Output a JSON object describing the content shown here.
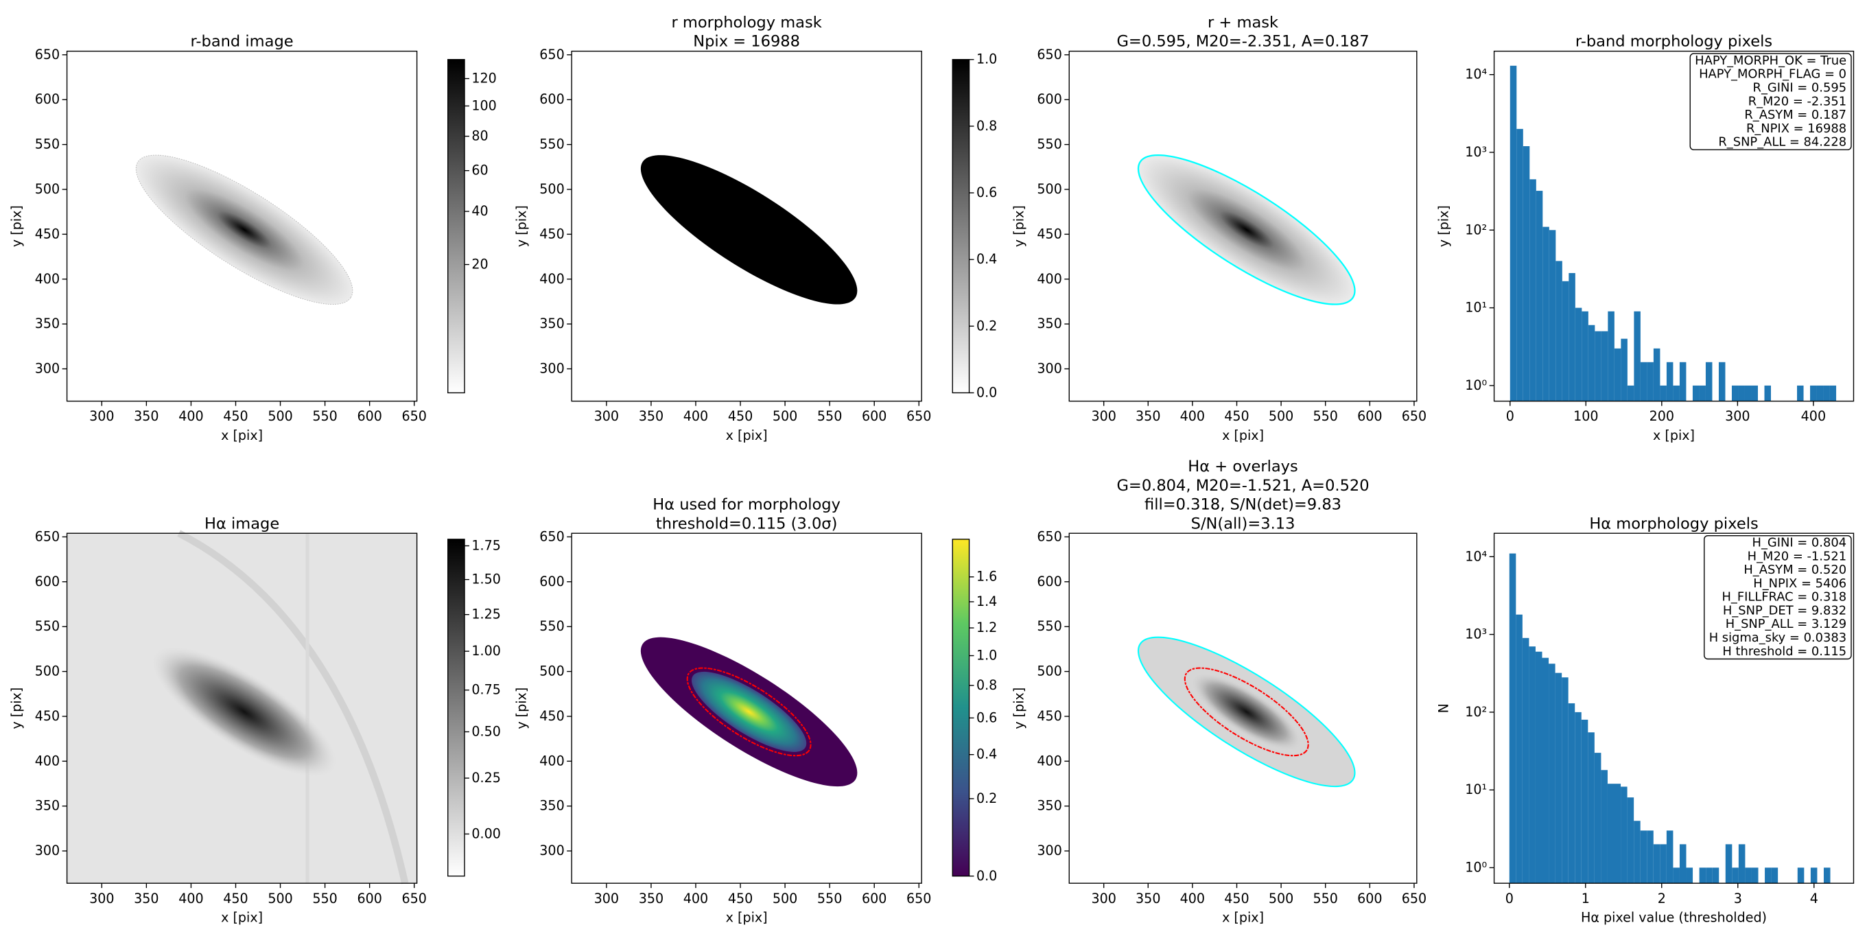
{
  "chart_data": [
    {
      "type": "image",
      "title": [
        "r-band image"
      ],
      "xlabel": "x [pix]",
      "ylabel": "y [pix]",
      "xlim": [
        261,
        653
      ],
      "ylim": [
        264,
        654
      ],
      "xticks": [
        300,
        350,
        400,
        450,
        500,
        550,
        600,
        650
      ],
      "yticks": [
        300,
        350,
        400,
        450,
        500,
        550,
        600,
        650
      ],
      "colorbar": {
        "cmap": "gray",
        "clim": [
          0,
          135
        ],
        "power": 0.5,
        "ticks": [
          20,
          40,
          60,
          80,
          100,
          120
        ]
      }
    },
    {
      "type": "image",
      "title": [
        "r morphology mask",
        "Npix = 16988"
      ],
      "xlabel": "x [pix]",
      "ylabel": "y [pix]",
      "xlim": [
        261,
        653
      ],
      "ylim": [
        264,
        654
      ],
      "xticks": [
        300,
        350,
        400,
        450,
        500,
        550,
        600,
        650
      ],
      "yticks": [
        300,
        350,
        400,
        450,
        500,
        550,
        600,
        650
      ],
      "colorbar": {
        "cmap": "gray",
        "clim": [
          0,
          1
        ],
        "power": 1,
        "ticks": [
          {
            "value": 0,
            "label": "0.0"
          },
          {
            "value": 0.2,
            "label": "0.2"
          },
          {
            "value": 0.4,
            "label": "0.4"
          },
          {
            "value": 0.6,
            "label": "0.6"
          },
          {
            "value": 0.8,
            "label": "0.8"
          },
          {
            "value": 1,
            "label": "1.0"
          }
        ]
      }
    },
    {
      "type": "image",
      "title": [
        "r + mask",
        "G=0.595, M20=-2.351, A=0.187"
      ],
      "xlabel": "x [pix]",
      "ylabel": "y [pix]",
      "xlim": [
        261,
        653
      ],
      "ylim": [
        264,
        654
      ],
      "xticks": [
        300,
        350,
        400,
        450,
        500,
        550,
        600,
        650
      ],
      "yticks": [
        300,
        350,
        400,
        450,
        500,
        550,
        600,
        650
      ]
    },
    {
      "type": "histogram",
      "title": [
        "r-band morphology pixels"
      ],
      "xlabel": "x [pix]",
      "ylabel": "y [pix]",
      "color": "#1f77b4",
      "yscale": "log",
      "xlim": [
        -21,
        453
      ],
      "ylim": [
        0.63,
        20000
      ],
      "xticks": [
        0,
        100,
        200,
        300,
        400
      ],
      "yticks": [
        {
          "value": 1,
          "label": "10⁰"
        },
        {
          "value": 10,
          "label": "10¹"
        },
        {
          "value": 100,
          "label": "10²"
        },
        {
          "value": 1000,
          "label": "10³"
        },
        {
          "value": 10000,
          "label": "10⁴"
        }
      ],
      "bins": [
        0,
        8.6,
        17.2,
        25.8,
        34.4,
        43,
        51.6,
        60.2,
        68.8,
        77.4,
        86,
        94.6,
        103.2,
        111.8,
        120.4,
        129,
        137.6,
        146.2,
        154.8,
        163.4,
        172,
        180.6,
        189.2,
        197.8,
        206.4,
        215,
        223.6,
        232.2,
        240.8,
        249.4,
        258,
        266.6,
        275.2,
        283.8,
        292.4,
        301,
        309.6,
        318.2,
        326.8,
        335.4,
        344,
        352.6,
        361.2,
        369.8,
        378.4,
        387,
        395.6,
        404.2,
        412.8,
        421.4,
        430
      ],
      "counts": [
        13000,
        2000,
        1200,
        450,
        320,
        110,
        100,
        40,
        22,
        28,
        10,
        9,
        6,
        5,
        5,
        9,
        3,
        4,
        1,
        9,
        2,
        2,
        3,
        1,
        2,
        1,
        2,
        0,
        1,
        1,
        2,
        0,
        2,
        0,
        1,
        1,
        1,
        1,
        0,
        1,
        0,
        0,
        0,
        0,
        1,
        0,
        1,
        1,
        1,
        1
      ],
      "annotation": [
        "HAPY_MORPH_OK = True",
        "HAPY_MORPH_FLAG = 0",
        "R_GINI = 0.595",
        "R_M20 = -2.351",
        "R_ASYM = 0.187",
        "R_NPIX = 16988",
        "R_SNP_ALL = 84.228"
      ]
    },
    {
      "type": "image",
      "title": [
        "Hα image"
      ],
      "xlabel": "x [pix]",
      "ylabel": "y [pix]",
      "xlim": [
        261,
        653
      ],
      "ylim": [
        264,
        654
      ],
      "xticks": [
        300,
        350,
        400,
        450,
        500,
        550,
        600,
        650
      ],
      "yticks": [
        300,
        350,
        400,
        450,
        500,
        550,
        600,
        650
      ],
      "colorbar": {
        "cmap": "gray",
        "clim": [
          -0.12,
          1.8
        ],
        "power": 0.75,
        "ticks": [
          {
            "value": 0,
            "label": "0.00"
          },
          {
            "value": 0.25,
            "label": "0.25"
          },
          {
            "value": 0.5,
            "label": "0.50"
          },
          {
            "value": 0.75,
            "label": "0.75"
          },
          {
            "value": 1,
            "label": "1.00"
          },
          {
            "value": 1.25,
            "label": "1.25"
          },
          {
            "value": 1.5,
            "label": "1.50"
          },
          {
            "value": 1.75,
            "label": "1.75"
          }
        ]
      }
    },
    {
      "type": "image",
      "title": [
        "Hα used for morphology",
        "threshold=0.115 (3.0σ)"
      ],
      "xlabel": "x [pix]",
      "ylabel": "y [pix]",
      "xlim": [
        261,
        653
      ],
      "ylim": [
        264,
        654
      ],
      "xticks": [
        300,
        350,
        400,
        450,
        500,
        550,
        600,
        650
      ],
      "yticks": [
        300,
        350,
        400,
        450,
        500,
        550,
        600,
        650
      ],
      "colorbar": {
        "cmap": "viridis",
        "clim": [
          0,
          1.92
        ],
        "power": 0.65,
        "ticks": [
          {
            "value": 0,
            "label": "0.0"
          },
          {
            "value": 0.2,
            "label": "0.2"
          },
          {
            "value": 0.4,
            "label": "0.4"
          },
          {
            "value": 0.6,
            "label": "0.6"
          },
          {
            "value": 0.8,
            "label": "0.8"
          },
          {
            "value": 1,
            "label": "1.0"
          },
          {
            "value": 1.2,
            "label": "1.2"
          },
          {
            "value": 1.4,
            "label": "1.4"
          },
          {
            "value": 1.6,
            "label": "1.6"
          }
        ]
      }
    },
    {
      "type": "image",
      "title": [
        "Hα + overlays",
        "G=0.804, M20=-1.521, A=0.520",
        "fill=0.318, S/N(det)=9.83",
        "S/N(all)=3.13"
      ],
      "xlabel": "x [pix]",
      "ylabel": "y [pix]",
      "xlim": [
        261,
        653
      ],
      "ylim": [
        264,
        654
      ],
      "xticks": [
        300,
        350,
        400,
        450,
        500,
        550,
        600,
        650
      ],
      "yticks": [
        300,
        350,
        400,
        450,
        500,
        550,
        600,
        650
      ]
    },
    {
      "type": "histogram",
      "title": [
        "Hα morphology pixels"
      ],
      "xlabel": "Hα pixel value (thresholded)",
      "ylabel": "N",
      "color": "#1f77b4",
      "yscale": "log",
      "xlim": [
        -0.2,
        4.52
      ],
      "ylim": [
        0.63,
        20000
      ],
      "xticks": [
        0,
        1,
        2,
        3,
        4
      ],
      "yticks": [
        {
          "value": 1,
          "label": "10⁰"
        },
        {
          "value": 10,
          "label": "10¹"
        },
        {
          "value": 100,
          "label": "10²"
        },
        {
          "value": 1000,
          "label": "10³"
        },
        {
          "value": 10000,
          "label": "10⁴"
        }
      ],
      "bins": [
        0,
        0.086,
        0.172,
        0.258,
        0.344,
        0.43,
        0.516,
        0.602,
        0.688,
        0.774,
        0.86,
        0.946,
        1.032,
        1.118,
        1.204,
        1.29,
        1.376,
        1.462,
        1.548,
        1.634,
        1.72,
        1.806,
        1.892,
        1.978,
        2.064,
        2.15,
        2.236,
        2.322,
        2.408,
        2.494,
        2.58,
        2.666,
        2.752,
        2.838,
        2.924,
        3.01,
        3.096,
        3.182,
        3.268,
        3.354,
        3.44,
        3.526,
        3.612,
        3.698,
        3.784,
        3.87,
        3.956,
        4.042,
        4.128,
        4.214,
        4.3
      ],
      "counts": [
        11000,
        1800,
        900,
        700,
        600,
        500,
        420,
        320,
        280,
        130,
        100,
        80,
        55,
        30,
        18,
        12,
        12,
        11,
        8,
        4,
        3,
        3,
        2,
        2,
        3,
        1,
        2,
        1,
        0,
        1,
        1,
        1,
        0,
        2,
        1,
        2,
        1,
        1,
        0,
        1,
        1,
        0,
        0,
        0,
        1,
        0,
        1,
        0,
        1,
        0
      ],
      "annotation": [
        "H_GINI = 0.804",
        "H_M20 = -1.521",
        "H_ASYM = 0.520",
        "H_NPIX = 5406",
        "H_FILLFRAC = 0.318",
        "H_SNP_DET = 9.832",
        "H_SNP_ALL = 3.129",
        "H sigma_sky = 0.0383",
        "H threshold = 0.115"
      ]
    }
  ]
}
